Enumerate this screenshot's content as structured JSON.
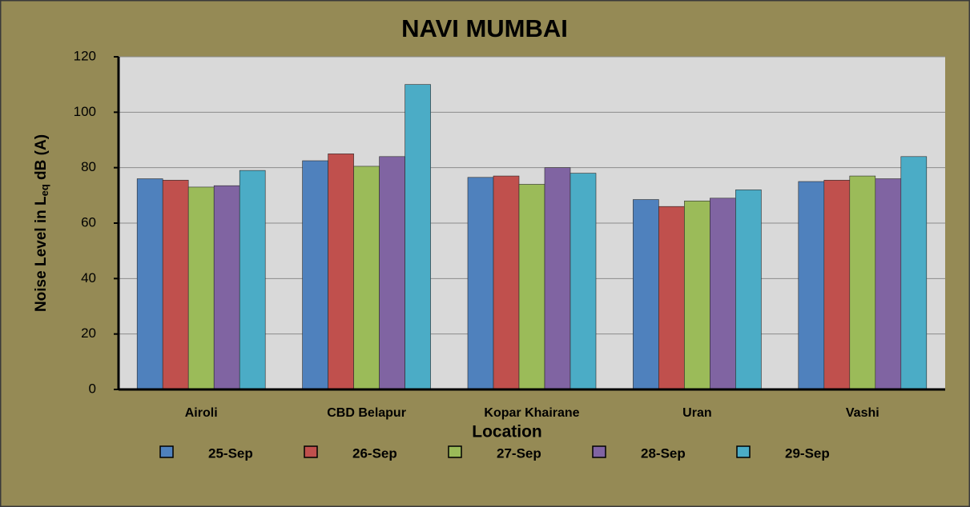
{
  "chart_data": {
    "type": "bar",
    "title": "NAVI MUMBAI",
    "xlabel": "Location",
    "ylabel": [
      "Noise Level in L",
      "eq",
      " dB (A)"
    ],
    "categories": [
      "Airoli",
      "CBD Belapur",
      "Kopar Khairane",
      "Uran",
      "Vashi"
    ],
    "series": [
      {
        "name": "25-Sep",
        "color": "#4f81bd",
        "values": [
          76,
          82.5,
          76.5,
          68.5,
          75
        ]
      },
      {
        "name": "26-Sep",
        "color": "#c0504d",
        "values": [
          75.5,
          85,
          77,
          66,
          75.5
        ]
      },
      {
        "name": "27-Sep",
        "color": "#9bbb59",
        "values": [
          73,
          80.5,
          74,
          68,
          77
        ]
      },
      {
        "name": "28-Sep",
        "color": "#8064a2",
        "values": [
          73.5,
          84,
          80,
          69,
          76
        ]
      },
      {
        "name": "29-Sep",
        "color": "#4bacc6",
        "values": [
          79,
          110,
          78,
          72,
          84
        ]
      }
    ],
    "ylim": [
      0,
      120
    ],
    "yticks": [
      0,
      20,
      40,
      60,
      80,
      100,
      120
    ],
    "grid": true
  }
}
